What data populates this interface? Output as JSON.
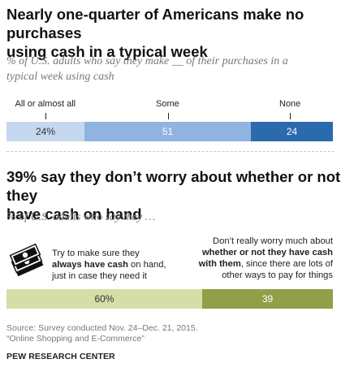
{
  "top": {
    "title_line1": "Nearly one-quarter of Americans make no purchases",
    "title_line2": "using cash in a typical week",
    "subtitle_line1": "% of U.S. adults who say they make __ of their purchases in a",
    "subtitle_line2": "typical week using cash"
  },
  "bottom": {
    "title_line1": "39% say they don’t worry about whether or not they",
    "title_line2": "have cash on hand",
    "subtitle": "% of U.S. adults who say they …",
    "left_note": {
      "line1": "Try to make sure they",
      "line2_bold": "always have cash",
      "line2_rest": " on hand,",
      "line3": "just in case they need it"
    },
    "right_note": {
      "line1": "Don’t really worry much about",
      "line2_bold": "whether or not they have cash",
      "line3_bold": "with them",
      "line3_rest": ", since there are lots of",
      "line4": "other ways to pay for things"
    },
    "icon": "cash-money-icon"
  },
  "chart_data": [
    {
      "type": "bar",
      "orientation": "horizontal-stacked",
      "categories": [
        "All or almost all",
        "Some",
        "None"
      ],
      "values": [
        24,
        51,
        24
      ],
      "value_labels": [
        "24%",
        "51",
        "24"
      ],
      "colors": [
        "#c5d8ef",
        "#8fb4e0",
        "#2a6aad"
      ],
      "text_colors": [
        "#333333",
        "#ffffff",
        "#ffffff"
      ],
      "xlim": [
        0,
        100
      ]
    },
    {
      "type": "bar",
      "orientation": "horizontal-stacked",
      "categories": [
        "Try to make sure they always have cash on hand",
        "Don’t really worry much about whether or not they have cash"
      ],
      "values": [
        60,
        39
      ],
      "value_labels": [
        "60%",
        "39"
      ],
      "colors": [
        "#d6dea8",
        "#8fa049"
      ],
      "text_colors": [
        "#333333",
        "#ffffff"
      ],
      "xlim": [
        0,
        100
      ]
    }
  ],
  "footer": {
    "source_line1": "Source: Survey conducted Nov. 24–Dec. 21, 2015.",
    "source_line2": "“Online Shopping and E-Commerce”",
    "brand": "PEW RESEARCH CENTER"
  }
}
